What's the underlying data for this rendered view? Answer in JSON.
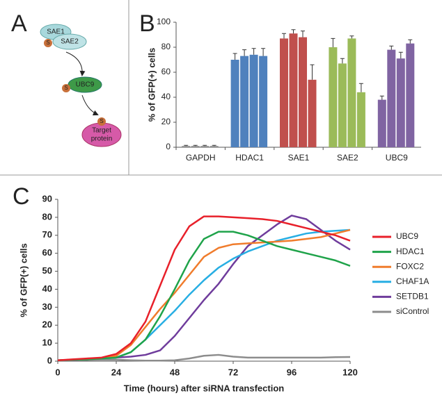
{
  "panel_labels": [
    "A",
    "B",
    "C"
  ],
  "diagram": {
    "enzyme_1": "SAE1",
    "enzyme_2": "SAE2",
    "conjugating_enzyme": "UBC9",
    "sumo_tag": "S",
    "target_label": [
      "Target",
      "protein"
    ]
  },
  "chart_data": [
    {
      "type": "grouped-bar",
      "ylabel": "% of GFP(+) cells",
      "categories": [
        "GAPDH",
        "HDAC1",
        "SAE1",
        "SAE2",
        "UBC9"
      ],
      "groups": [
        {
          "color": "#8c8c8c",
          "values": [
            1,
            1,
            1,
            1
          ],
          "errors": [
            0.5,
            0.5,
            0.5,
            0.5
          ]
        },
        {
          "color": "#4f81bd",
          "values": [
            70,
            73,
            74,
            73
          ],
          "errors": [
            5,
            5,
            5,
            6
          ]
        },
        {
          "color": "#c0504d",
          "values": [
            87,
            91,
            88,
            54
          ],
          "errors": [
            4,
            3,
            5,
            12
          ]
        },
        {
          "color": "#9bbb59",
          "values": [
            80,
            67,
            87,
            44
          ],
          "errors": [
            7,
            4,
            2,
            7
          ]
        },
        {
          "color": "#8064a2",
          "values": [
            38,
            78,
            71,
            83
          ],
          "errors": [
            3,
            3,
            5,
            3
          ]
        }
      ],
      "ylim": [
        0,
        100
      ],
      "yticks": [
        0,
        20,
        40,
        60,
        80,
        100
      ]
    },
    {
      "type": "line",
      "xlabel": "Time (hours) after siRNA transfection",
      "ylabel": "% of GFP(+) cells",
      "x": [
        0,
        6,
        12,
        18,
        24,
        30,
        36,
        42,
        48,
        54,
        60,
        66,
        72,
        78,
        84,
        90,
        96,
        102,
        108,
        114,
        120
      ],
      "series": [
        {
          "name": "UBC9",
          "color": "#e8202a",
          "values": [
            0.5,
            1,
            1.5,
            2,
            4,
            10,
            22,
            42,
            62,
            75,
            80.5,
            80.5,
            80,
            79.5,
            79,
            78,
            76,
            74,
            72,
            70,
            67
          ]
        },
        {
          "name": "HDAC1",
          "color": "#1fa34a",
          "values": [
            0.5,
            0.8,
            1,
            1.5,
            2,
            5,
            12,
            25,
            40,
            56,
            68,
            72,
            72,
            70,
            67,
            64,
            62,
            60,
            58,
            56,
            53
          ]
        },
        {
          "name": "FOXC2",
          "color": "#f07c2c",
          "values": [
            0.5,
            0.8,
            1,
            1.5,
            3,
            9,
            19,
            29,
            38,
            48,
            58,
            63,
            65,
            65.5,
            66,
            66.5,
            67,
            68,
            69,
            71,
            73
          ]
        },
        {
          "name": "CHAF1A",
          "color": "#27aee3",
          "values": [
            0.5,
            0.8,
            1,
            1.5,
            2,
            5,
            12,
            20,
            28,
            37,
            45,
            52,
            57,
            61,
            64,
            67,
            69,
            71,
            72,
            72.5,
            73
          ]
        },
        {
          "name": "SETDB1",
          "color": "#6f3c9c",
          "values": [
            0.5,
            0.7,
            1,
            1.5,
            2,
            2.5,
            3.5,
            6,
            14,
            24,
            34,
            43,
            54,
            64,
            70,
            76,
            81,
            79,
            73,
            67,
            62
          ]
        },
        {
          "name": "siControl",
          "color": "#8c8c8c",
          "values": [
            0.5,
            0.6,
            0.7,
            0.8,
            0.8,
            0.5,
            0.3,
            0.3,
            0.5,
            1.5,
            3,
            3.5,
            2.5,
            2,
            2,
            2,
            2,
            2,
            2,
            2.2,
            2.3
          ]
        }
      ],
      "xlim": [
        0,
        120
      ],
      "xticks": [
        0,
        24,
        48,
        72,
        96,
        120
      ],
      "ylim": [
        0,
        90
      ],
      "yticks": [
        0,
        10,
        20,
        30,
        40,
        50,
        60,
        70,
        80,
        90
      ]
    }
  ]
}
